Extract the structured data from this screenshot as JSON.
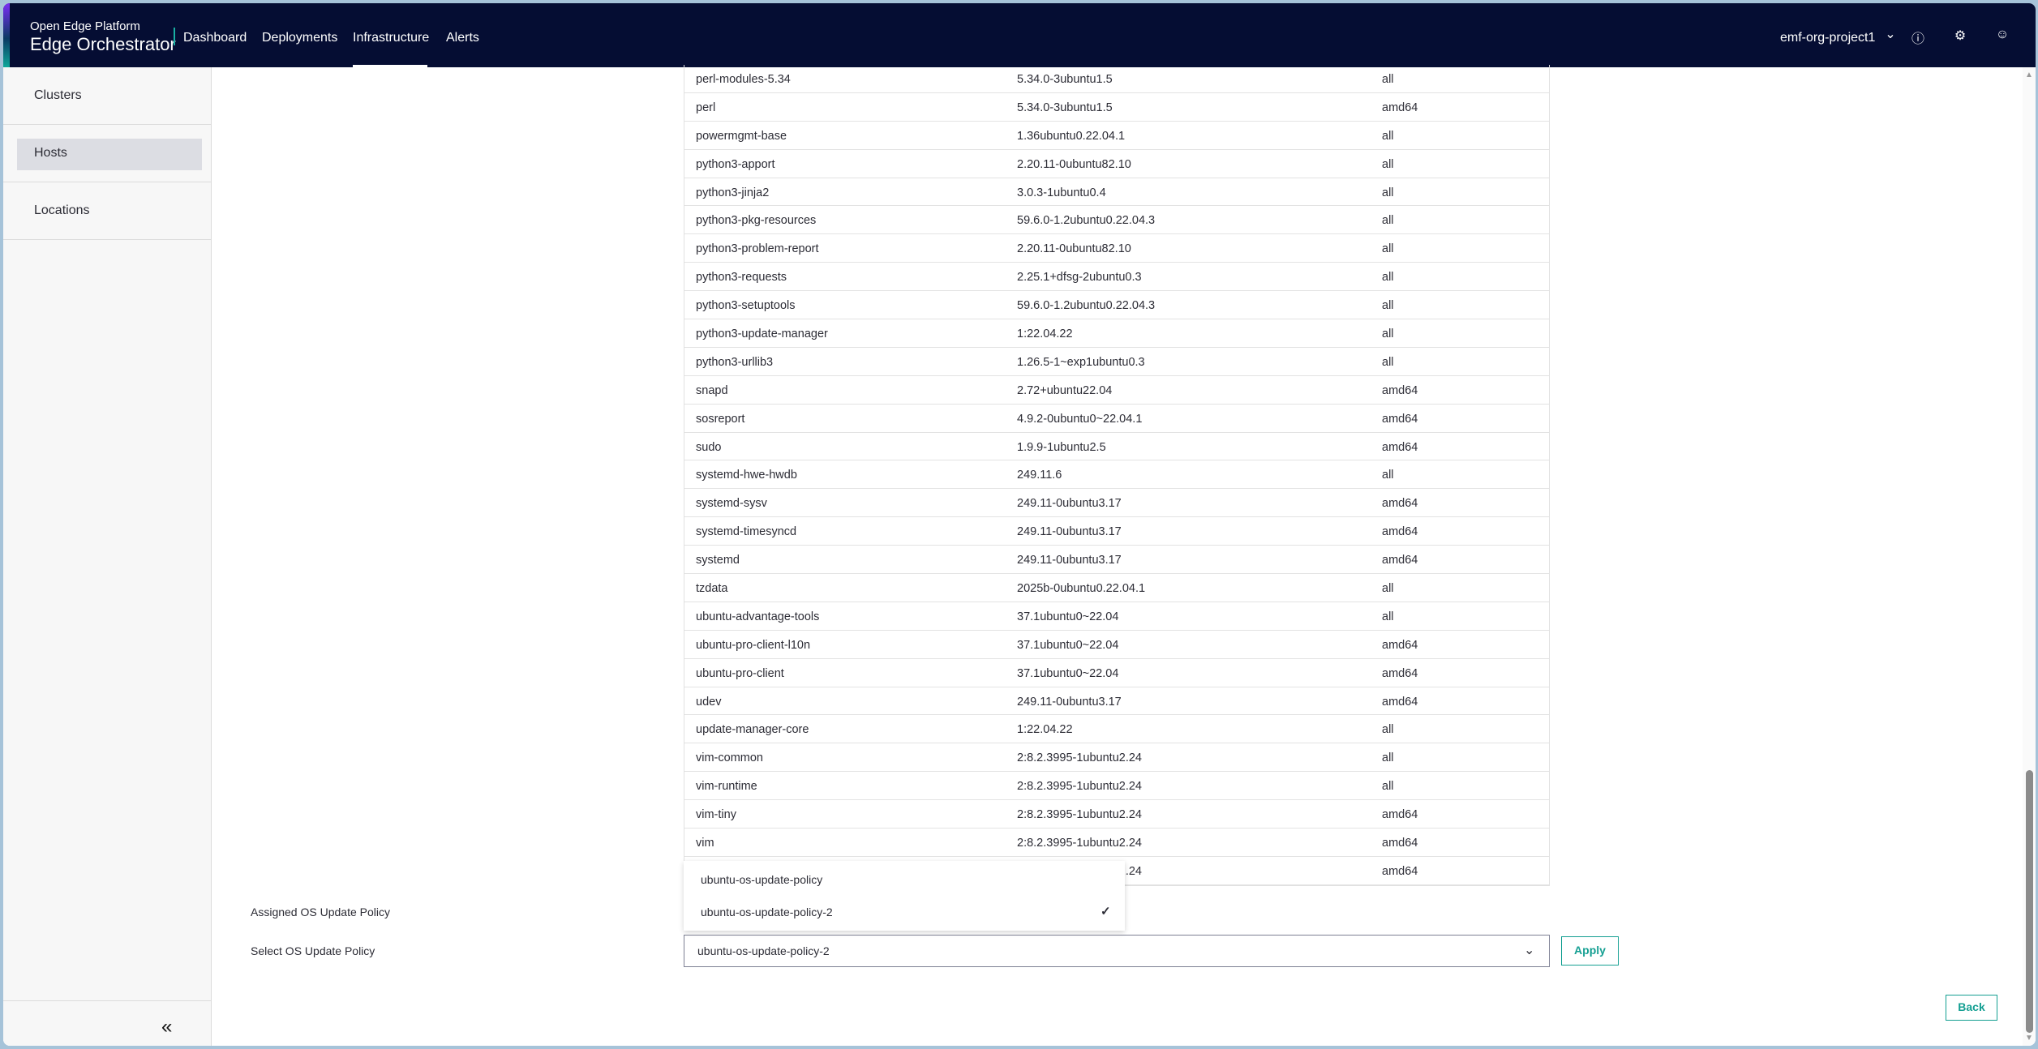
{
  "header": {
    "brand_top": "Open Edge Platform",
    "brand": "Edge Orchestrator",
    "nav": [
      {
        "label": "Dashboard"
      },
      {
        "label": "Deployments"
      },
      {
        "label": "Infrastructure",
        "active": true
      },
      {
        "label": "Alerts"
      }
    ],
    "project": "emf-org-project1",
    "icons": [
      "chevron-down-icon",
      "help-icon",
      "gear-icon",
      "user-icon"
    ]
  },
  "sidebar": {
    "items": [
      {
        "label": "Clusters"
      },
      {
        "label": "Hosts",
        "selected": true
      },
      {
        "label": "Locations"
      }
    ],
    "collapse": "«"
  },
  "packages": [
    [
      "perl-modules-5.34",
      "5.34.0-3ubuntu1.5",
      "all"
    ],
    [
      "perl",
      "5.34.0-3ubuntu1.5",
      "amd64"
    ],
    [
      "powermgmt-base",
      "1.36ubuntu0.22.04.1",
      "all"
    ],
    [
      "python3-apport",
      "2.20.11-0ubuntu82.10",
      "all"
    ],
    [
      "python3-jinja2",
      "3.0.3-1ubuntu0.4",
      "all"
    ],
    [
      "python3-pkg-resources",
      "59.6.0-1.2ubuntu0.22.04.3",
      "all"
    ],
    [
      "python3-problem-report",
      "2.20.11-0ubuntu82.10",
      "all"
    ],
    [
      "python3-requests",
      "2.25.1+dfsg-2ubuntu0.3",
      "all"
    ],
    [
      "python3-setuptools",
      "59.6.0-1.2ubuntu0.22.04.3",
      "all"
    ],
    [
      "python3-update-manager",
      "1:22.04.22",
      "all"
    ],
    [
      "python3-urllib3",
      "1.26.5-1~exp1ubuntu0.3",
      "all"
    ],
    [
      "snapd",
      "2.72+ubuntu22.04",
      "amd64"
    ],
    [
      "sosreport",
      "4.9.2-0ubuntu0~22.04.1",
      "amd64"
    ],
    [
      "sudo",
      "1.9.9-1ubuntu2.5",
      "amd64"
    ],
    [
      "systemd-hwe-hwdb",
      "249.11.6",
      "all"
    ],
    [
      "systemd-sysv",
      "249.11-0ubuntu3.17",
      "amd64"
    ],
    [
      "systemd-timesyncd",
      "249.11-0ubuntu3.17",
      "amd64"
    ],
    [
      "systemd",
      "249.11-0ubuntu3.17",
      "amd64"
    ],
    [
      "tzdata",
      "2025b-0ubuntu0.22.04.1",
      "all"
    ],
    [
      "ubuntu-advantage-tools",
      "37.1ubuntu0~22.04",
      "all"
    ],
    [
      "ubuntu-pro-client-l10n",
      "37.1ubuntu0~22.04",
      "amd64"
    ],
    [
      "ubuntu-pro-client",
      "37.1ubuntu0~22.04",
      "amd64"
    ],
    [
      "udev",
      "249.11-0ubuntu3.17",
      "amd64"
    ],
    [
      "update-manager-core",
      "1:22.04.22",
      "all"
    ],
    [
      "vim-common",
      "2:8.2.3995-1ubuntu2.24",
      "all"
    ],
    [
      "vim-runtime",
      "2:8.2.3995-1ubuntu2.24",
      "all"
    ],
    [
      "vim-tiny",
      "2:8.2.3995-1ubuntu2.24",
      "amd64"
    ],
    [
      "vim",
      "2:8.2.3995-1ubuntu2.24",
      "amd64"
    ],
    [
      "",
      "2:8.2.3995-1ubuntu2.24",
      "amd64"
    ]
  ],
  "policy": {
    "assigned_label": "Assigned OS Update Policy",
    "select_label": "Select OS Update Policy",
    "options": [
      "ubuntu-os-update-policy",
      "ubuntu-os-update-policy-2"
    ],
    "selected": "ubuntu-os-update-policy-2",
    "apply": "Apply"
  },
  "back": "Back",
  "colors": {
    "header": "#050d33",
    "accent": "#149f92"
  }
}
